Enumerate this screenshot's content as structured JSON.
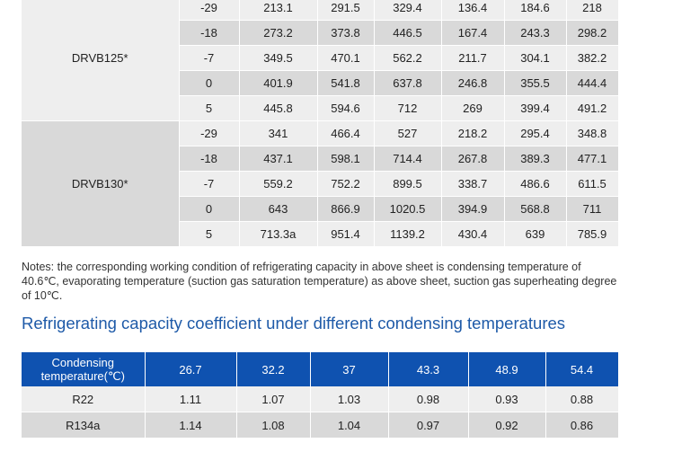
{
  "spec_table": {
    "groups": [
      {
        "model": "DRVB125*",
        "rows": [
          [
            "-29",
            "213.1",
            "291.5",
            "329.4",
            "136.4",
            "184.6",
            "218"
          ],
          [
            "-18",
            "273.2",
            "373.8",
            "446.5",
            "167.4",
            "243.3",
            "298.2"
          ],
          [
            "-7",
            "349.5",
            "470.1",
            "562.2",
            "211.7",
            "304.1",
            "382.2"
          ],
          [
            "0",
            "401.9",
            "541.8",
            "637.8",
            "246.8",
            "355.5",
            "444.4"
          ],
          [
            "5",
            "445.8",
            "594.6",
            "712",
            "269",
            "399.4",
            "491.2"
          ]
        ]
      },
      {
        "model": "DRVB130*",
        "rows": [
          [
            "-29",
            "341",
            "466.4",
            "527",
            "218.2",
            "295.4",
            "348.8"
          ],
          [
            "-18",
            "437.1",
            "598.1",
            "714.4",
            "267.8",
            "389.3",
            "477.1"
          ],
          [
            "-7",
            "559.2",
            "752.2",
            "899.5",
            "338.7",
            "486.6",
            "611.5"
          ],
          [
            "0",
            "643",
            "866.9",
            "1020.5",
            "394.9",
            "568.8",
            "711"
          ],
          [
            "5",
            "713.3a",
            "951.4",
            "1139.2",
            "430.4",
            "639",
            "785.9"
          ]
        ]
      }
    ]
  },
  "notes": "Notes: the corresponding working condition of refrigerating capacity in above sheet is condensing temperature of 40.6℃, evaporating temperature (suction gas saturation temperature) as above sheet, suction gas superheating degree of 10℃.",
  "coefficient_section": {
    "title": "Refrigerating capacity coefficient under different condensing temperatures",
    "header_label_line1": "Condensing",
    "header_label_line2": "temperature(℃)",
    "temperatures": [
      "26.7",
      "32.2",
      "37",
      "43.3",
      "48.9",
      "54.4"
    ],
    "rows": [
      {
        "refrigerant": "R22",
        "values": [
          "1.11",
          "1.07",
          "1.03",
          "0.98",
          "0.93",
          "0.88"
        ]
      },
      {
        "refrigerant": "R134a",
        "values": [
          "1.14",
          "1.08",
          "1.04",
          "0.97",
          "0.92",
          "0.86"
        ]
      }
    ]
  }
}
